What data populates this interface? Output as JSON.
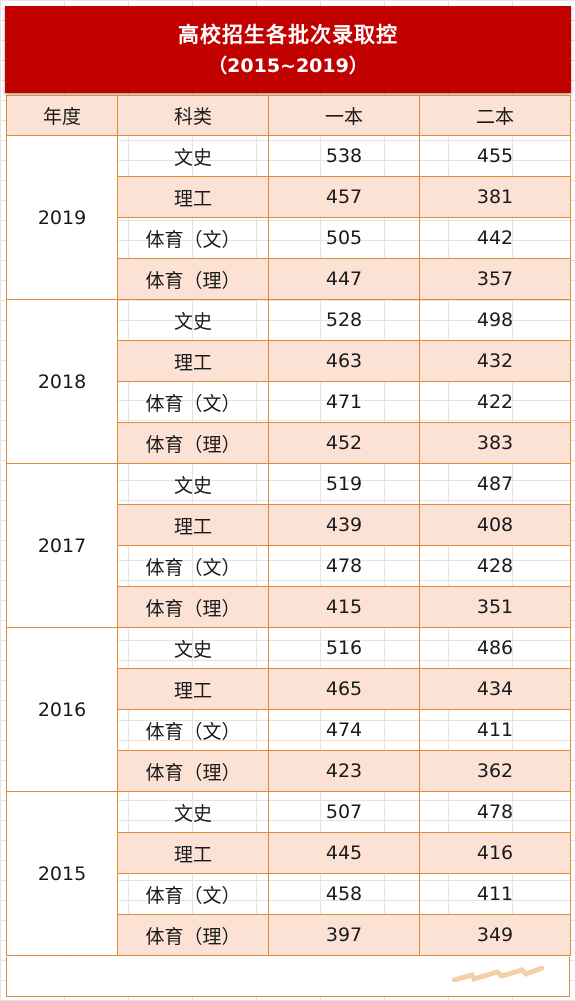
{
  "title": {
    "main": "高校招生各批次录取控",
    "sub": "（2015~2019）"
  },
  "headers": {
    "year": "年度",
    "category": "科类",
    "tier1": "一本",
    "tier2": "二本"
  },
  "groups": [
    {
      "year": "2019",
      "rows": [
        {
          "category": "文史",
          "tier1": "538",
          "tier2": "455"
        },
        {
          "category": "理工",
          "tier1": "457",
          "tier2": "381"
        },
        {
          "category": "体育（文）",
          "tier1": "505",
          "tier2": "442"
        },
        {
          "category": "体育（理）",
          "tier1": "447",
          "tier2": "357"
        }
      ]
    },
    {
      "year": "2018",
      "rows": [
        {
          "category": "文史",
          "tier1": "528",
          "tier2": "498"
        },
        {
          "category": "理工",
          "tier1": "463",
          "tier2": "432"
        },
        {
          "category": "体育（文）",
          "tier1": "471",
          "tier2": "422"
        },
        {
          "category": "体育（理）",
          "tier1": "452",
          "tier2": "383"
        }
      ]
    },
    {
      "year": "2017",
      "rows": [
        {
          "category": "文史",
          "tier1": "519",
          "tier2": "487"
        },
        {
          "category": "理工",
          "tier1": "439",
          "tier2": "408"
        },
        {
          "category": "体育（文）",
          "tier1": "478",
          "tier2": "428"
        },
        {
          "category": "体育（理）",
          "tier1": "415",
          "tier2": "351"
        }
      ]
    },
    {
      "year": "2016",
      "rows": [
        {
          "category": "文史",
          "tier1": "516",
          "tier2": "486"
        },
        {
          "category": "理工",
          "tier1": "465",
          "tier2": "434"
        },
        {
          "category": "体育（文）",
          "tier1": "474",
          "tier2": "411"
        },
        {
          "category": "体育（理）",
          "tier1": "423",
          "tier2": "362"
        }
      ]
    },
    {
      "year": "2015",
      "rows": [
        {
          "category": "文史",
          "tier1": "507",
          "tier2": "478"
        },
        {
          "category": "理工",
          "tier1": "445",
          "tier2": "416"
        },
        {
          "category": "体育（文）",
          "tier1": "458",
          "tier2": "411"
        },
        {
          "category": "体育（理）",
          "tier1": "397",
          "tier2": "349"
        }
      ]
    }
  ],
  "colors": {
    "title_bg": "#c10000",
    "title_text": "#ffffff",
    "shade": "#fbe2d5",
    "border": "#e08a3a"
  }
}
